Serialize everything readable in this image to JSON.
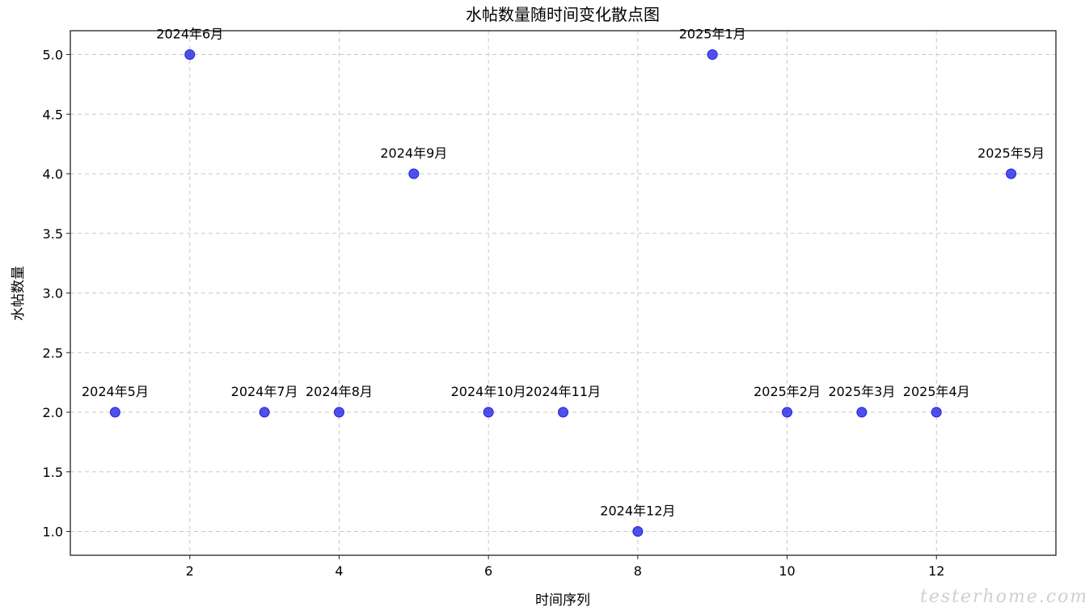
{
  "chart_data": {
    "type": "scatter",
    "title": "水帖数量随时间变化散点图",
    "xlabel": "时间序列",
    "ylabel": "水帖数量",
    "xlim": [
      0.4,
      13.6
    ],
    "ylim": [
      0.8,
      5.2
    ],
    "xticks": [
      2,
      4,
      6,
      8,
      10,
      12
    ],
    "yticks": [
      1.0,
      1.5,
      2.0,
      2.5,
      3.0,
      3.5,
      4.0,
      4.5,
      5.0
    ],
    "grid": true,
    "marker_color": "#1f1fe6",
    "points": [
      {
        "x": 1,
        "y": 2,
        "label": "2024年5月"
      },
      {
        "x": 2,
        "y": 5,
        "label": "2024年6月"
      },
      {
        "x": 3,
        "y": 2,
        "label": "2024年7月"
      },
      {
        "x": 4,
        "y": 2,
        "label": "2024年8月"
      },
      {
        "x": 5,
        "y": 4,
        "label": "2024年9月"
      },
      {
        "x": 6,
        "y": 2,
        "label": "2024年10月"
      },
      {
        "x": 7,
        "y": 2,
        "label": "2024年11月"
      },
      {
        "x": 8,
        "y": 1,
        "label": "2024年12月"
      },
      {
        "x": 9,
        "y": 5,
        "label": "2025年1月"
      },
      {
        "x": 10,
        "y": 2,
        "label": "2025年2月"
      },
      {
        "x": 11,
        "y": 2,
        "label": "2025年3月"
      },
      {
        "x": 12,
        "y": 2,
        "label": "2025年4月"
      },
      {
        "x": 13,
        "y": 4,
        "label": "2025年5月"
      }
    ]
  },
  "watermark": "testerhome.com"
}
